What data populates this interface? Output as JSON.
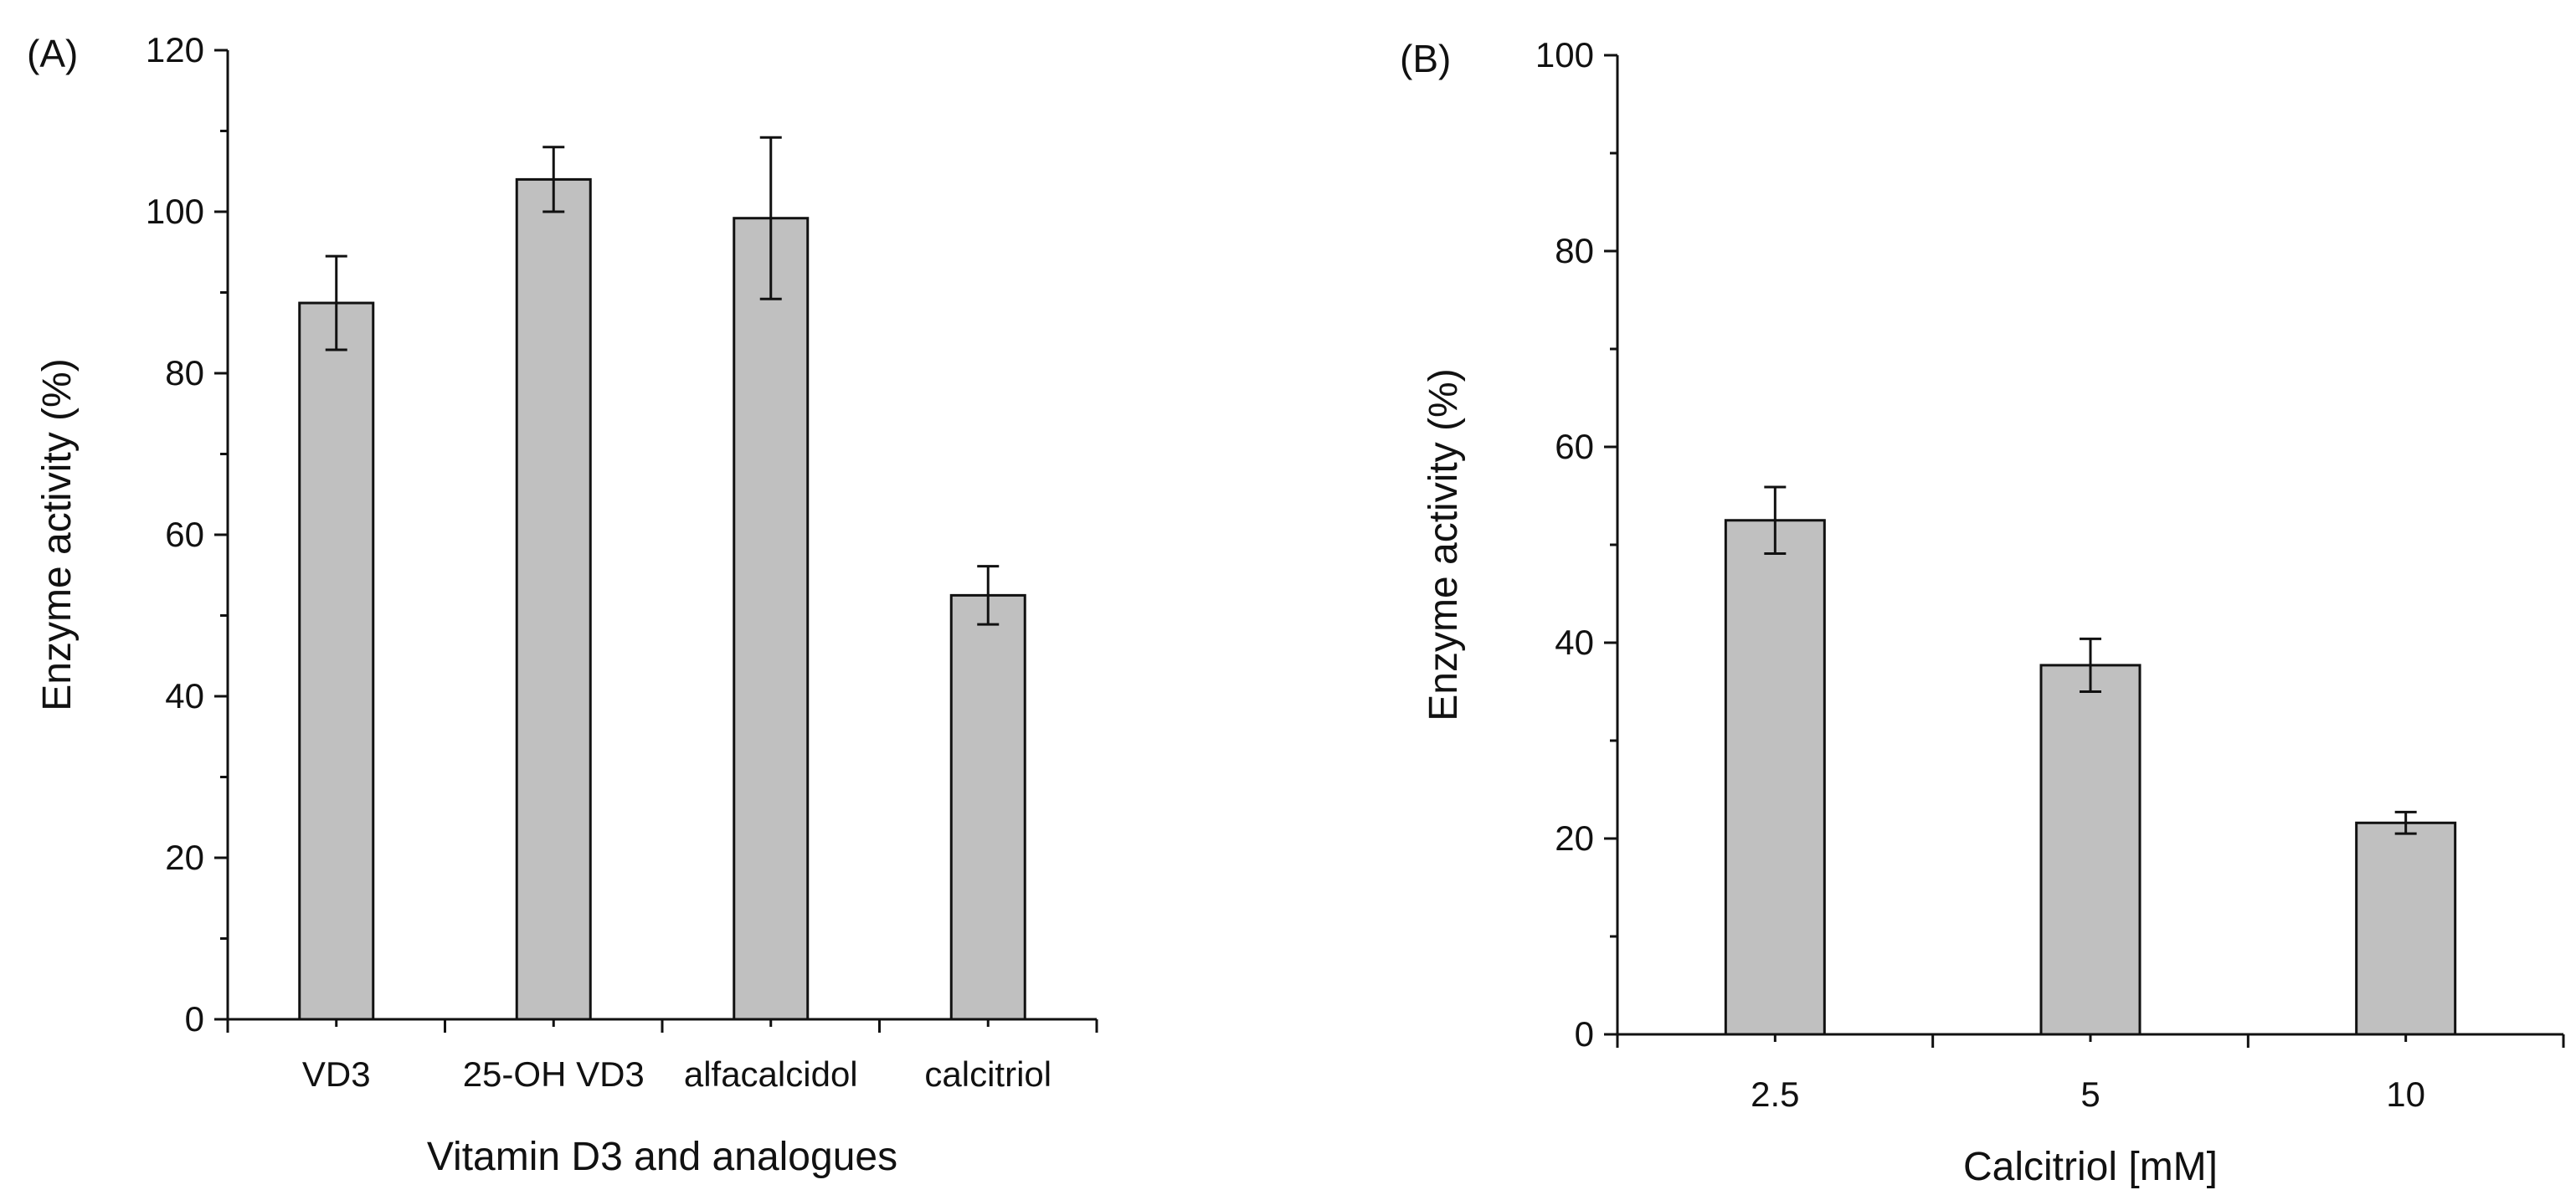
{
  "chart_data": [
    {
      "type": "bar",
      "panel_label": "(A)",
      "title": "",
      "categories": [
        "VD3",
        "25-OH VD3",
        "alfacalcidol",
        "calcitriol"
      ],
      "values": [
        88.7,
        104.0,
        99.2,
        52.5
      ],
      "errors": [
        5.8,
        4.0,
        10.0,
        3.6
      ],
      "xlabel": "Vitamin D3 and analogues",
      "ylabel": "Enzyme activity (%)",
      "ylim": [
        0,
        120
      ],
      "yticks": [
        0,
        20,
        40,
        60,
        80,
        100,
        120
      ],
      "bar_color": "#c0c0c0",
      "grid": false
    },
    {
      "type": "bar",
      "panel_label": "(B)",
      "title": "",
      "categories": [
        "2.5",
        "5",
        "10"
      ],
      "values": [
        52.5,
        37.7,
        21.6
      ],
      "errors": [
        3.4,
        2.7,
        1.1
      ],
      "xlabel": "Calcitriol [mM]",
      "ylabel": "Enzyme activity (%)",
      "ylim": [
        0,
        100
      ],
      "yticks": [
        0,
        20,
        40,
        60,
        80,
        100
      ],
      "bar_color": "#c0c0c0",
      "grid": false
    }
  ]
}
